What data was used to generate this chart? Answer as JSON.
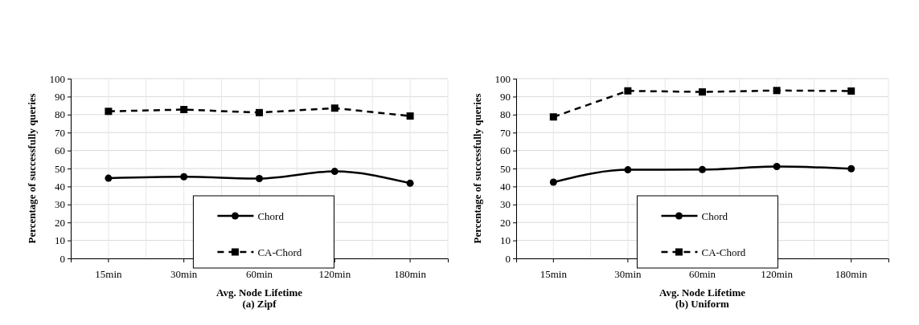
{
  "chart_data": [
    {
      "type": "line",
      "title": "(a) Zipf",
      "xlabel": "Avg. Node Lifetime",
      "ylabel": "Percentage of successfully queries",
      "categories": [
        "15min",
        "30min",
        "60min",
        "120min",
        "180min"
      ],
      "ylim": [
        0,
        100
      ],
      "yticks": [
        0,
        10,
        20,
        30,
        40,
        50,
        60,
        70,
        80,
        90,
        100
      ],
      "grid": true,
      "legend": "bottom",
      "series": [
        {
          "name": "Chord",
          "color": "#000000",
          "line_style": "solid",
          "marker": "circle",
          "values": [
            44.6,
            45.4,
            44.4,
            48.4,
            41.8
          ]
        },
        {
          "name": "CA-Chord",
          "color": "#000000",
          "line_style": "dashed",
          "marker": "square",
          "values": [
            81.8,
            82.8,
            81.1,
            83.6,
            79.2
          ]
        }
      ]
    },
    {
      "type": "line",
      "title": "(b) Uniform",
      "xlabel": "Avg. Node Lifetime",
      "ylabel": "Percentage of successfully queries",
      "categories": [
        "15min",
        "30min",
        "60min",
        "120min",
        "180min"
      ],
      "ylim": [
        0,
        100
      ],
      "yticks": [
        0,
        10,
        20,
        30,
        40,
        50,
        60,
        70,
        80,
        90,
        100
      ],
      "grid": true,
      "legend": "bottom",
      "series": [
        {
          "name": "Chord",
          "color": "#000000",
          "line_style": "solid",
          "marker": "circle",
          "values": [
            42.4,
            49.3,
            49.4,
            51.1,
            49.9
          ]
        },
        {
          "name": "CA-Chord",
          "color": "#000000",
          "line_style": "dashed",
          "marker": "square",
          "values": [
            78.7,
            93.2,
            92.6,
            93.4,
            93.1
          ]
        }
      ]
    }
  ]
}
